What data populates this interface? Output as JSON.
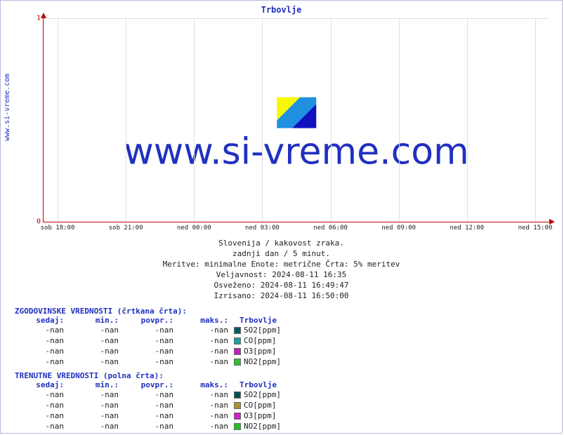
{
  "site_label_vertical": "www.si-vreme.com",
  "watermark_text": "www.si-vreme.com",
  "chart": {
    "title": "Trbovlje",
    "type": "line",
    "ylim": [
      0,
      1
    ],
    "yticks": [
      0,
      1
    ],
    "xticks": [
      "sob 18:00",
      "sob 21:00",
      "ned 00:00",
      "ned 03:00",
      "ned 06:00",
      "ned 09:00",
      "ned 12:00",
      "ned 15:00"
    ],
    "axis_color": "#c00000",
    "grid_color": "#e0e0e0",
    "title_color": "#2030c0",
    "background": "#ffffff",
    "watermark_colors": [
      "#f8f800",
      "#2090e0",
      "#1010c0"
    ]
  },
  "caption": {
    "line1": "Slovenija / kakovost zraka.",
    "line2": "zadnji dan / 5 minut.",
    "line3": "Meritve: minimalne  Enote: metrične  Črta: 5% meritev",
    "line4": "Veljavnost: 2024-08-11 16:35",
    "line5": "Osveženo: 2024-08-11 16:49:47",
    "line6": "Izrisano: 2024-08-11 16:50:00"
  },
  "tables": {
    "hist_title": "ZGODOVINSKE VREDNOSTI (črtkana črta):",
    "curr_title": "TRENUTNE VREDNOSTI (polna črta):",
    "headers": {
      "now": "sedaj:",
      "min": "min.:",
      "avg": "povpr.:",
      "max": "maks.:",
      "loc": "Trbovlje"
    },
    "hist_rows": [
      {
        "now": "-nan",
        "min": "-nan",
        "avg": "-nan",
        "max": "-nan",
        "color": "#006060",
        "label": "SO2[ppm]"
      },
      {
        "now": "-nan",
        "min": "-nan",
        "avg": "-nan",
        "max": "-nan",
        "color": "#20a0a0",
        "label": "CO[ppm]"
      },
      {
        "now": "-nan",
        "min": "-nan",
        "avg": "-nan",
        "max": "-nan",
        "color": "#c020c0",
        "label": "O3[ppm]"
      },
      {
        "now": "-nan",
        "min": "-nan",
        "avg": "-nan",
        "max": "-nan",
        "color": "#30c030",
        "label": "NO2[ppm]"
      }
    ],
    "curr_rows": [
      {
        "now": "-nan",
        "min": "-nan",
        "avg": "-nan",
        "max": "-nan",
        "color": "#005050",
        "label": "SO2[ppm]"
      },
      {
        "now": "-nan",
        "min": "-nan",
        "avg": "-nan",
        "max": "-nan",
        "color": "#b09030",
        "label": "CO[ppm]"
      },
      {
        "now": "-nan",
        "min": "-nan",
        "avg": "-nan",
        "max": "-nan",
        "color": "#d020d0",
        "label": "O3[ppm]"
      },
      {
        "now": "-nan",
        "min": "-nan",
        "avg": "-nan",
        "max": "-nan",
        "color": "#20c020",
        "label": "NO2[ppm]"
      }
    ]
  }
}
